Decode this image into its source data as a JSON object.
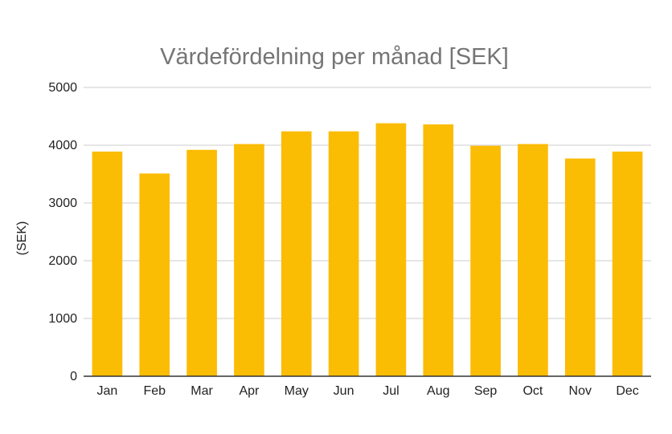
{
  "chart_data": {
    "type": "bar",
    "title": "Värdefördelning per månad [SEK]",
    "xlabel": "",
    "ylabel": "(SEK)",
    "categories": [
      "Jan",
      "Feb",
      "Mar",
      "Apr",
      "May",
      "Jun",
      "Jul",
      "Aug",
      "Sep",
      "Oct",
      "Nov",
      "Dec"
    ],
    "values": [
      3890,
      3510,
      3920,
      4020,
      4240,
      4240,
      4380,
      4360,
      3990,
      4020,
      3770,
      3890
    ],
    "ylim": [
      0,
      5000
    ],
    "yticks": [
      "0",
      "1000",
      "2000",
      "3000",
      "4000",
      "5000"
    ],
    "grid": true,
    "legend": "none",
    "colors": {
      "bar": "#FBBC04",
      "gridline": "#CCCCCC",
      "title": "#757575"
    }
  }
}
